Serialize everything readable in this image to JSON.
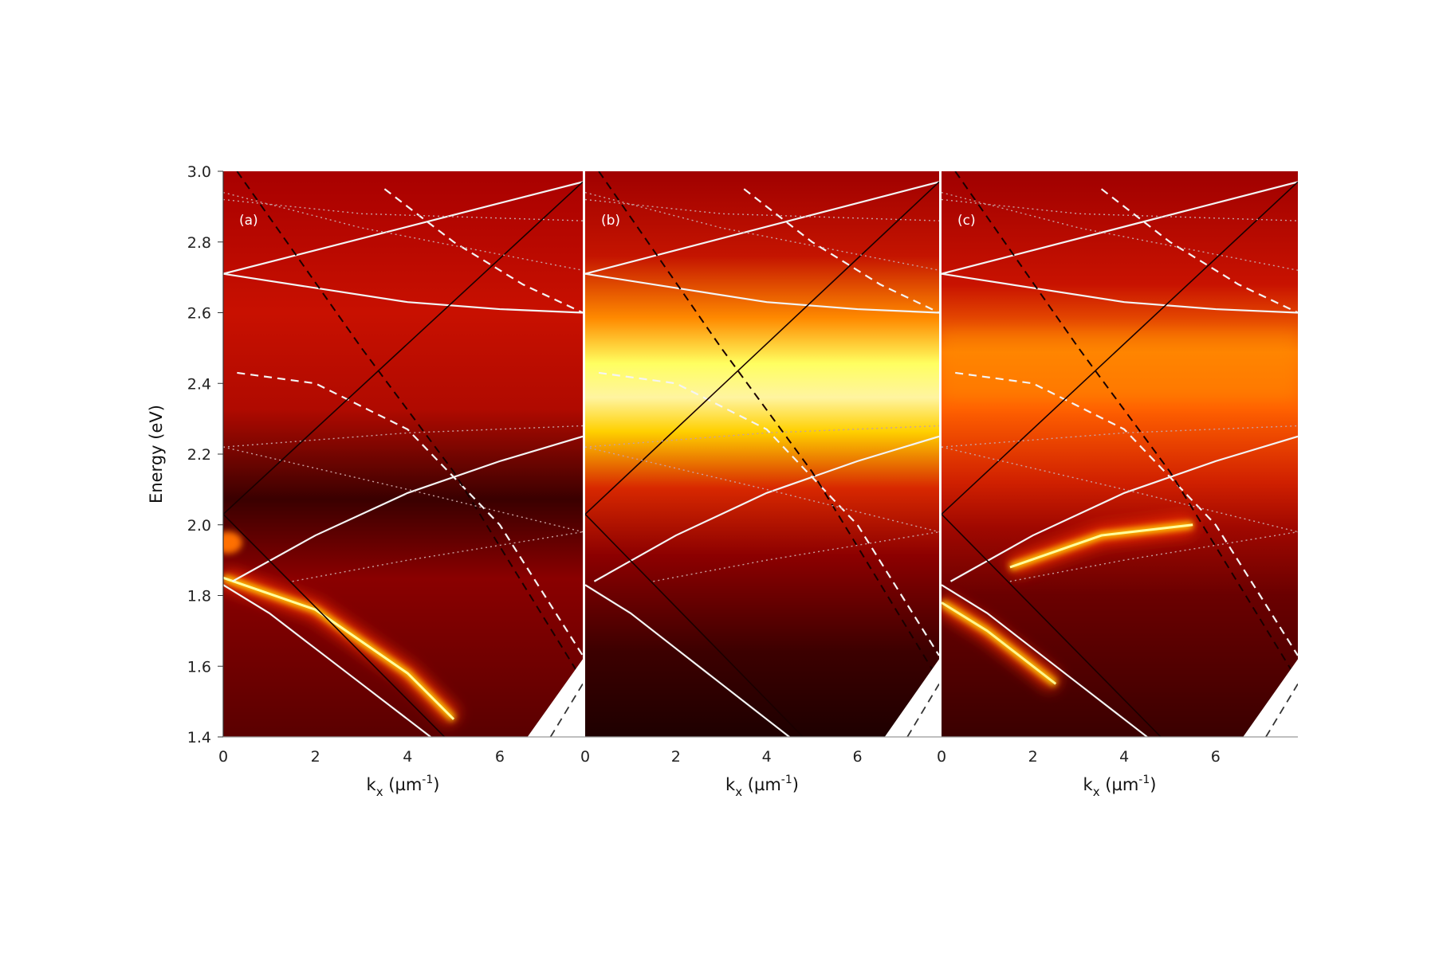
{
  "chart_data": {
    "type": "heatmap",
    "ylabel": "Energy (eV)",
    "ylim": [
      1.4,
      3.0
    ],
    "xlim": [
      0,
      7.8
    ],
    "y_ticks": [
      "1.4",
      "1.6",
      "1.8",
      "2.0",
      "2.2",
      "2.4",
      "2.6",
      "2.8",
      "3.0"
    ],
    "x_ticks": [
      "0",
      "2",
      "4",
      "6"
    ],
    "colormap": "black-red-yellow-white (hot)",
    "panels": [
      {
        "label": "(a)",
        "xlabel_base": "k",
        "xlabel_sub": "x",
        "xlabel_units_pre": " (µm",
        "xlabel_sup": "-1",
        "xlabel_units_post": ")",
        "bright_features": [
          {
            "kind": "band",
            "description_text": "",
            "x": [
              0,
              2,
              4,
              5
            ],
            "y": [
              1.85,
              1.76,
              1.58,
              1.45
            ],
            "intensity": 1.0
          },
          {
            "kind": "spot",
            "x": 0.1,
            "y": 1.95,
            "intensity": 0.8
          }
        ]
      },
      {
        "label": "(b)",
        "xlabel_base": "k",
        "xlabel_sub": "x",
        "xlabel_units_pre": " (µm",
        "xlabel_sup": "-1",
        "xlabel_units_post": ")",
        "bright_features": [
          {
            "kind": "horizontal_band",
            "y_center": 2.47,
            "y_width": 0.12,
            "intensity": 1.0
          }
        ]
      },
      {
        "label": "(c)",
        "xlabel_base": "k",
        "xlabel_sub": "x",
        "xlabel_units_pre": " (µm",
        "xlabel_sup": "-1",
        "xlabel_units_post": ")",
        "bright_features": [
          {
            "kind": "band",
            "x": [
              1.5,
              3.5,
              5.5
            ],
            "y": [
              1.88,
              1.97,
              2.0
            ],
            "intensity": 1.0
          },
          {
            "kind": "band",
            "x": [
              0,
              1,
              2.5
            ],
            "y": [
              1.78,
              1.7,
              1.55
            ],
            "intensity": 0.9
          },
          {
            "kind": "horizontal_band",
            "y_center": 2.45,
            "y_width": 0.2,
            "intensity": 0.6
          }
        ]
      }
    ],
    "overlay_curves": [
      {
        "style": "white-solid",
        "x": [
          0,
          7.8
        ],
        "y": [
          2.71,
          2.97
        ]
      },
      {
        "style": "white-solid",
        "x": [
          0,
          2,
          4,
          6,
          7.8
        ],
        "y": [
          2.71,
          2.67,
          2.63,
          2.61,
          2.6
        ]
      },
      {
        "style": "white-solid",
        "x": [
          0.2,
          2,
          4,
          6,
          7.8
        ],
        "y": [
          1.84,
          1.97,
          2.09,
          2.18,
          2.25
        ]
      },
      {
        "style": "white-solid",
        "x": [
          0,
          1,
          2,
          3,
          4,
          4.5
        ],
        "y": [
          1.83,
          1.75,
          1.65,
          1.55,
          1.45,
          1.4
        ]
      },
      {
        "style": "white-dashed",
        "x": [
          0.3,
          2,
          4,
          6,
          7.8
        ],
        "y": [
          2.43,
          2.4,
          2.27,
          2.0,
          1.63
        ]
      },
      {
        "style": "white-dashed",
        "x": [
          3.5,
          5,
          6.5,
          7.8
        ],
        "y": [
          2.95,
          2.8,
          2.68,
          2.6
        ]
      },
      {
        "style": "black-solid",
        "x": [
          0,
          7.8
        ],
        "y": [
          2.03,
          2.97
        ]
      },
      {
        "style": "black-solid",
        "x": [
          0,
          4.8
        ],
        "y": [
          2.03,
          1.4
        ]
      },
      {
        "style": "black-dashed",
        "x": [
          0.3,
          3,
          5,
          7.7
        ],
        "y": [
          3.0,
          2.5,
          2.15,
          1.58
        ]
      },
      {
        "style": "gray-dotted",
        "x": [
          0,
          4,
          7.8
        ],
        "y": [
          2.22,
          2.26,
          2.28
        ]
      },
      {
        "style": "gray-dotted",
        "x": [
          0,
          4,
          7.8
        ],
        "y": [
          2.22,
          2.1,
          1.98
        ]
      },
      {
        "style": "gray-dotted",
        "x": [
          1.5,
          4,
          7.8
        ],
        "y": [
          1.84,
          1.9,
          1.98
        ]
      },
      {
        "style": "gray-dotted",
        "x": [
          0,
          3,
          7.8
        ],
        "y": [
          2.94,
          2.84,
          2.72
        ]
      },
      {
        "style": "gray-dotted",
        "x": [
          0,
          3,
          7.8
        ],
        "y": [
          2.92,
          2.88,
          2.86
        ]
      }
    ]
  }
}
